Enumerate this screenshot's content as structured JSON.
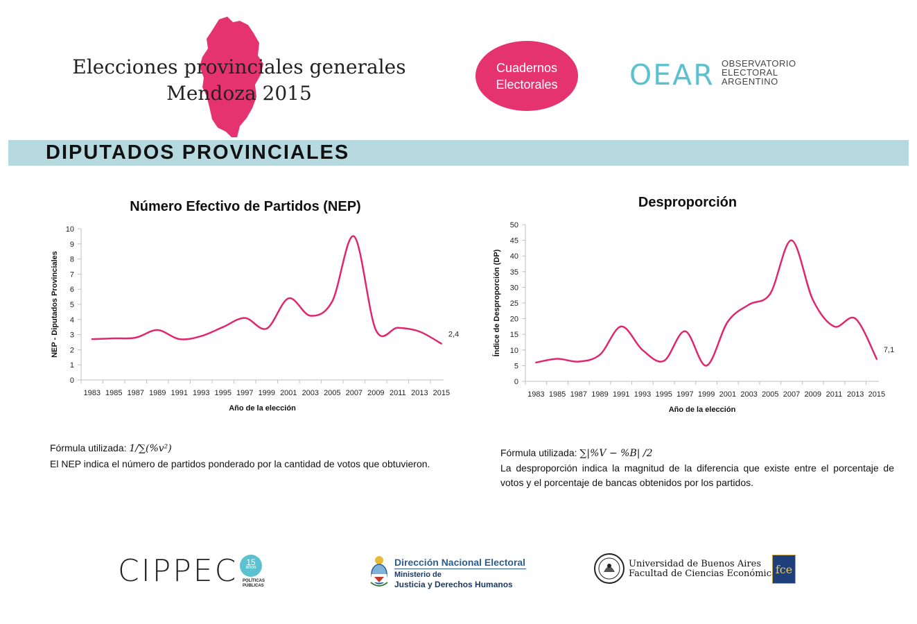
{
  "header": {
    "title_line1": "Elecciones provinciales generales",
    "title_line2": "Mendoza 2015",
    "pill_line1": "Cuadernos",
    "pill_line2": "Electorales",
    "oear_mark": "OEAR",
    "oear_line1": "OBSERVATORIO",
    "oear_line2": "ELECTORAL",
    "oear_line3": "ARGENTINO"
  },
  "section": {
    "title": "DIPUTADOS PROVINCIALES"
  },
  "colors": {
    "pink": "#e5336f",
    "line": "#e0266e",
    "bar": "#b6d9e0",
    "teal": "#5cc1cf"
  },
  "chart_data": [
    {
      "type": "line",
      "title": "Número Efectivo de Partidos (NEP)",
      "xlabel": "Año de la elección",
      "ylabel": "NEP - Diputados Provinciales",
      "categories": [
        "1983",
        "1985",
        "1987",
        "1989",
        "1991",
        "1993",
        "1995",
        "1997",
        "1999",
        "2001",
        "2003",
        "2005",
        "2007",
        "2009",
        "2011",
        "2013",
        "2015"
      ],
      "values": [
        2.7,
        2.75,
        2.8,
        3.3,
        2.7,
        2.9,
        3.5,
        4.1,
        3.4,
        5.4,
        4.25,
        5.2,
        9.5,
        3.3,
        3.45,
        3.2,
        2.4
      ],
      "ylim": [
        0,
        10
      ],
      "yticks": [
        0,
        1,
        2,
        3,
        4,
        5,
        6,
        7,
        8,
        9,
        10
      ],
      "end_label": "2,4"
    },
    {
      "type": "line",
      "title": "Desproporción",
      "xlabel": "Año de la elección",
      "ylabel": "Índice de Desproporción (DP)",
      "categories": [
        "1983",
        "1985",
        "1987",
        "1989",
        "1991",
        "1993",
        "1995",
        "1997",
        "1999",
        "2001",
        "2003",
        "2005",
        "2007",
        "2009",
        "2011",
        "2013",
        "2015"
      ],
      "values": [
        6,
        7.2,
        6.3,
        8.5,
        17.5,
        10,
        6.5,
        16,
        5,
        19,
        24.5,
        28,
        45,
        26,
        17.5,
        20,
        7.1
      ],
      "ylim": [
        0,
        50
      ],
      "yticks": [
        0,
        5,
        10,
        15,
        20,
        25,
        30,
        35,
        40,
        45,
        50
      ],
      "end_label": "7,1"
    }
  ],
  "nep_text": {
    "formula_label": "Fórmula utilizada:",
    "formula": "1/∑(%v²)",
    "description": "El NEP indica el número de partidos ponderado por la cantidad de votos que obtuvieron."
  },
  "dp_text": {
    "formula_label": "Fórmula utilizada:",
    "formula": "∑|%V − %B| /2",
    "description": "La desproporción indica la magnitud de la diferencia que existe entre el porcentaje de votos y el porcentaje de bancas obtenidos por los partidos."
  },
  "footer": {
    "cippec": "CIPPEC",
    "cippec_badge": "15",
    "cippec_badge_sub": "años",
    "cippec_sub1": "POLÍTICAS",
    "cippec_sub2": "PÚBLICAS",
    "dne_title": "Dirección Nacional Electoral",
    "dne_sub1": "Ministerio de",
    "dne_sub2": "Justicia y Derechos Humanos",
    "uba_line1": "Universidad de Buenos Aires",
    "uba_line2": "Facultad de Ciencias Económicas",
    "fce_badge": "fce"
  }
}
